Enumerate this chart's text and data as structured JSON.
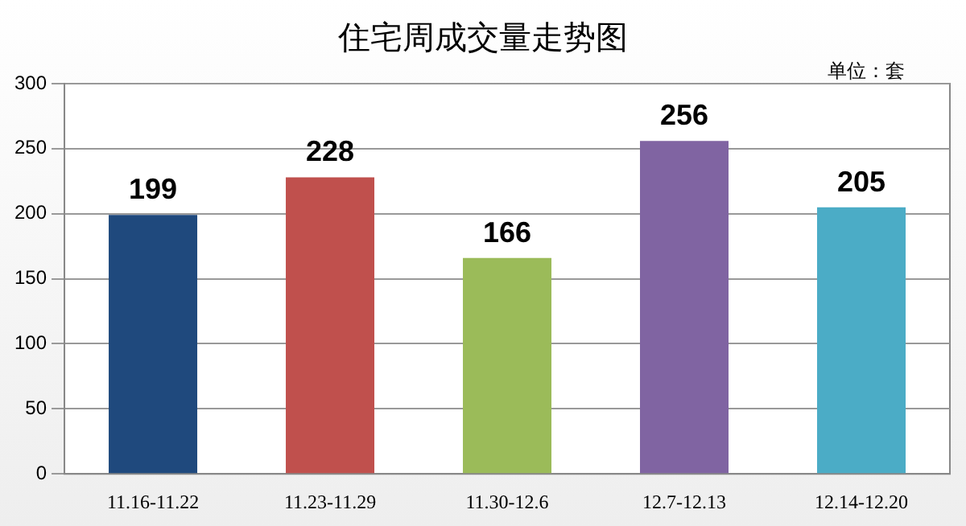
{
  "chart_data": {
    "type": "bar",
    "title": "住宅周成交量走势图",
    "annotations": [
      "单位：套"
    ],
    "categories": [
      "11.16-11.22",
      "11.23-11.29",
      "11.30-12.6",
      "12.7-12.13",
      "12.14-12.20"
    ],
    "values": [
      199,
      228,
      166,
      256,
      205
    ],
    "colors": [
      "#1f497d",
      "#c0504d",
      "#9bbb59",
      "#8064a2",
      "#4bacc6"
    ],
    "ylim": [
      0,
      300
    ],
    "yticks": [
      0,
      50,
      100,
      150,
      200,
      250,
      300
    ],
    "grid": "y",
    "data_labels": true
  }
}
